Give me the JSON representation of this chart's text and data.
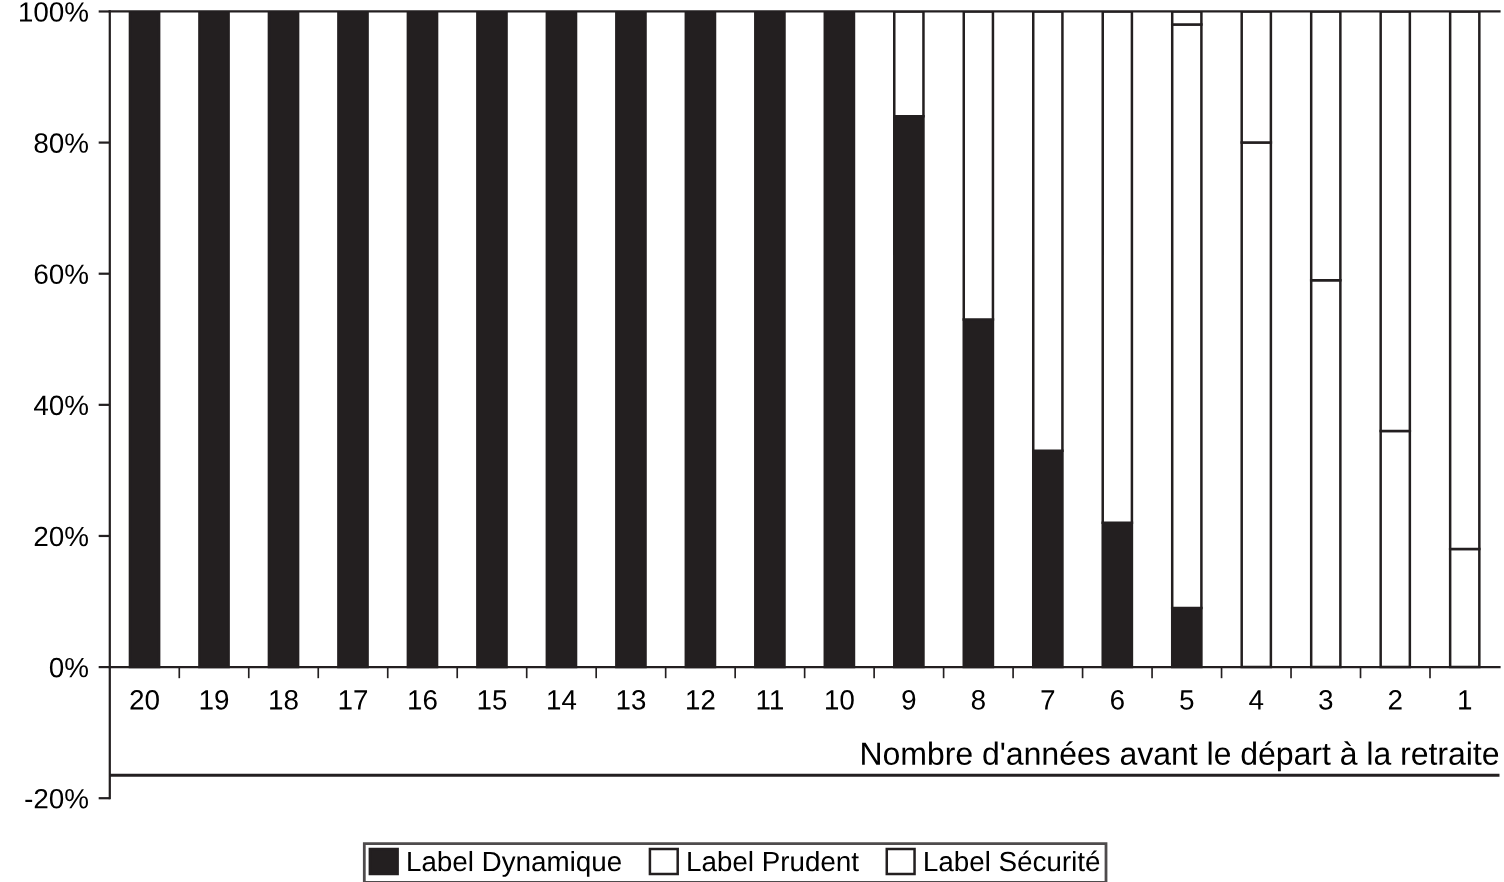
{
  "chart_data": {
    "type": "bar",
    "stacked": true,
    "xlabel": "Nombre d'années avant le départ à la retraite",
    "categories": [
      "20",
      "19",
      "18",
      "17",
      "16",
      "15",
      "14",
      "13",
      "12",
      "11",
      "10",
      "9",
      "8",
      "7",
      "6",
      "5",
      "4",
      "3",
      "2",
      "1"
    ],
    "series": [
      {
        "name": "Label Dynamique",
        "color": "#231f20",
        "values": [
          100,
          100,
          100,
          100,
          100,
          100,
          100,
          100,
          100,
          100,
          100,
          84,
          53,
          33,
          22,
          9,
          0,
          0,
          0,
          0
        ]
      },
      {
        "name": "Label Prudent",
        "color": "#ffffff",
        "values": [
          0,
          0,
          0,
          0,
          0,
          0,
          0,
          0,
          0,
          0,
          0,
          16,
          47,
          67,
          78,
          89,
          80,
          59,
          36,
          18
        ]
      },
      {
        "name": "Label Sécurité",
        "color": "#ffffff",
        "values": [
          0,
          0,
          0,
          0,
          0,
          0,
          0,
          0,
          0,
          0,
          0,
          0,
          0,
          0,
          0,
          2,
          20,
          41,
          64,
          82
        ]
      }
    ],
    "ylim": [
      -20,
      100
    ],
    "yticks": [
      {
        "value": -20,
        "label": "-20%"
      },
      {
        "value": 0,
        "label": "0%"
      },
      {
        "value": 20,
        "label": "20%"
      },
      {
        "value": 40,
        "label": "40%"
      },
      {
        "value": 60,
        "label": "60%"
      },
      {
        "value": 80,
        "label": "80%"
      },
      {
        "value": 100,
        "label": "100%"
      }
    ],
    "ref_lines": [
      {
        "axis": "y",
        "value": -16.5,
        "label": null,
        "color": "#231f20"
      }
    ],
    "grid": false,
    "legend": "bottom"
  }
}
